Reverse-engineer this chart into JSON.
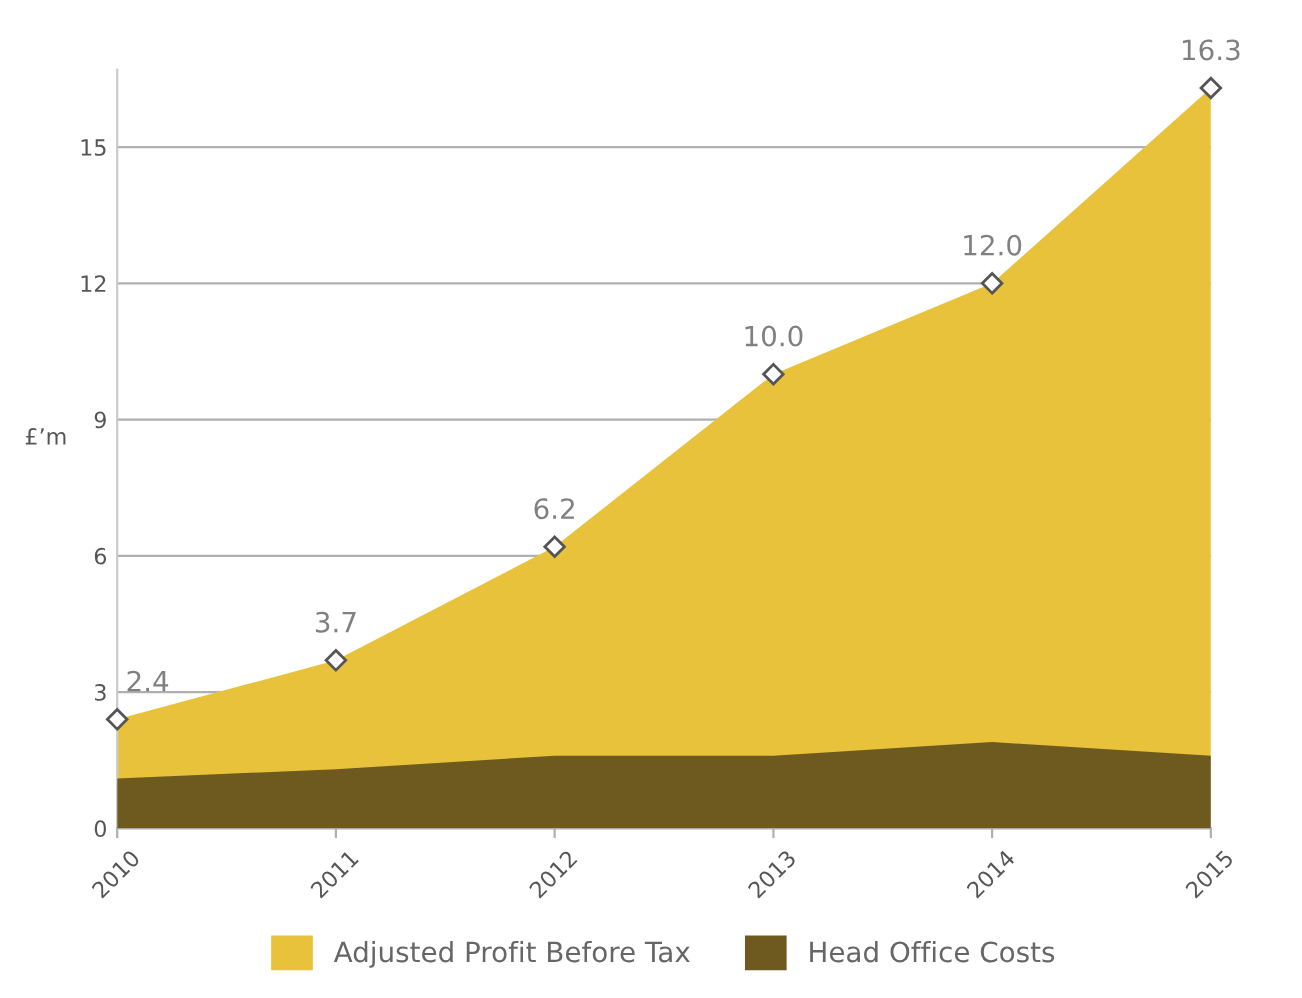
{
  "chart_data": {
    "type": "area",
    "ylabel": "£’m",
    "x": [
      2010,
      2011,
      2012,
      2013,
      2014,
      2015
    ],
    "xlim": [
      2010,
      2015
    ],
    "xticks": [
      2010,
      2011,
      2012,
      2013,
      2014,
      2015
    ],
    "ylim": [
      0,
      16.7
    ],
    "yticks": [
      0,
      3,
      6,
      9,
      12,
      15
    ],
    "grid": "y",
    "legend": "bottom",
    "series": [
      {
        "name": "Adjusted Profit Before Tax",
        "color": "#e8c23a",
        "values": [
          2.4,
          3.7,
          6.2,
          10.0,
          12.0,
          16.3
        ],
        "marker": "diamond",
        "value_labels": [
          "2.4",
          "3.7",
          "6.2",
          "10.0",
          "12.0",
          "16.3"
        ]
      },
      {
        "name": "Head Office Costs",
        "color": "#6e5a1e",
        "values": [
          1.1,
          1.3,
          1.6,
          1.6,
          1.9,
          1.6
        ]
      }
    ]
  }
}
